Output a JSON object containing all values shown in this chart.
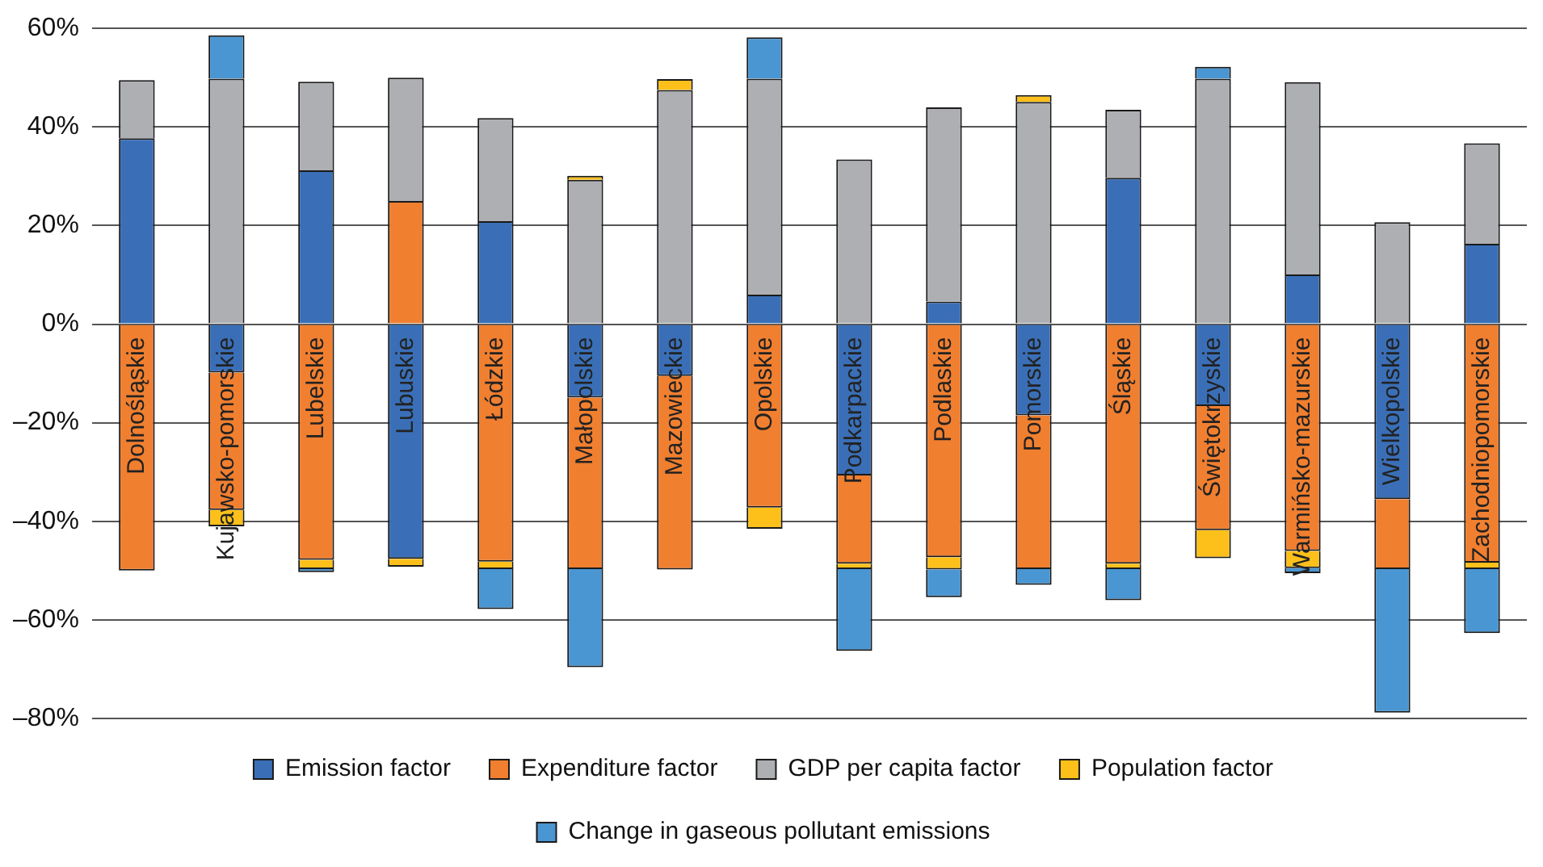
{
  "chart_data": {
    "type": "bar",
    "stacked": true,
    "grid": "y",
    "legend": "bottom",
    "categories": [
      "Dolnośląskie",
      "Kujawsko-pomorskie",
      "Lubelskie",
      "Lubuskie",
      "Łódzkie",
      "Małopolskie",
      "Mazowieckie",
      "Opolskie",
      "Podkarpackie",
      "Podlaskie",
      "Pomorskie",
      "Śląskie",
      "Świętokrzyskie",
      "Warmińsko-mazurskie",
      "Wielkopolskie",
      "Zachodniopomorskie"
    ],
    "ylim": [
      -80,
      60
    ],
    "yticks": [
      {
        "value": -80,
        "label": "–80%"
      },
      {
        "value": -60,
        "label": "–60%"
      },
      {
        "value": -40,
        "label": "–40%"
      },
      {
        "value": -20,
        "label": "–20%"
      },
      {
        "value": 0,
        "label": "0%"
      },
      {
        "value": 20,
        "label": "20%"
      },
      {
        "value": 40,
        "label": "40%"
      },
      {
        "value": 60,
        "label": "60%"
      }
    ],
    "series": [
      {
        "name": "Emission factor",
        "color": "#3a6fb7",
        "values": [
          37.7,
          -9.8,
          31.2,
          -47.6,
          20.9,
          -14.9,
          -10.5,
          6.0,
          -30.7,
          4.6,
          -18.5,
          29.7,
          -16.6,
          10.1,
          -35.5,
          16.3
        ]
      },
      {
        "name": "Expenditure factor",
        "color": "#f07f30",
        "values": [
          -50.0,
          -27.9,
          -47.8,
          25.0,
          -48.2,
          -34.8,
          -39.3,
          -37.2,
          -17.9,
          -47.3,
          -31.2,
          -48.6,
          -25.2,
          -46.0,
          -14.2,
          -48.4
        ]
      },
      {
        "name": "GDP per capita factor",
        "color": "#aeafb3",
        "values": [
          11.8,
          49.8,
          18.0,
          25.0,
          20.9,
          29.3,
          47.5,
          43.8,
          33.4,
          39.4,
          45.1,
          13.8,
          49.8,
          39.0,
          20.7,
          20.4
        ]
      },
      {
        "name": "Population factor",
        "color": "#fdc01a",
        "values": [
          null,
          -3.3,
          -1.9,
          -1.6,
          -1.5,
          0.8,
          2.2,
          -4.3,
          -1.1,
          -2.5,
          1.4,
          -1.1,
          -5.7,
          -3.5,
          null,
          -1.3
        ]
      },
      {
        "name": "Change in gaseous pollutant emissions",
        "color": "#4a96d2",
        "values": [
          null,
          8.8,
          -0.6,
          null,
          -8.1,
          -19.9,
          null,
          8.4,
          -16.6,
          -5.6,
          -3.2,
          -6.3,
          2.4,
          -1.0,
          -29.1,
          -13.0
        ]
      }
    ]
  }
}
